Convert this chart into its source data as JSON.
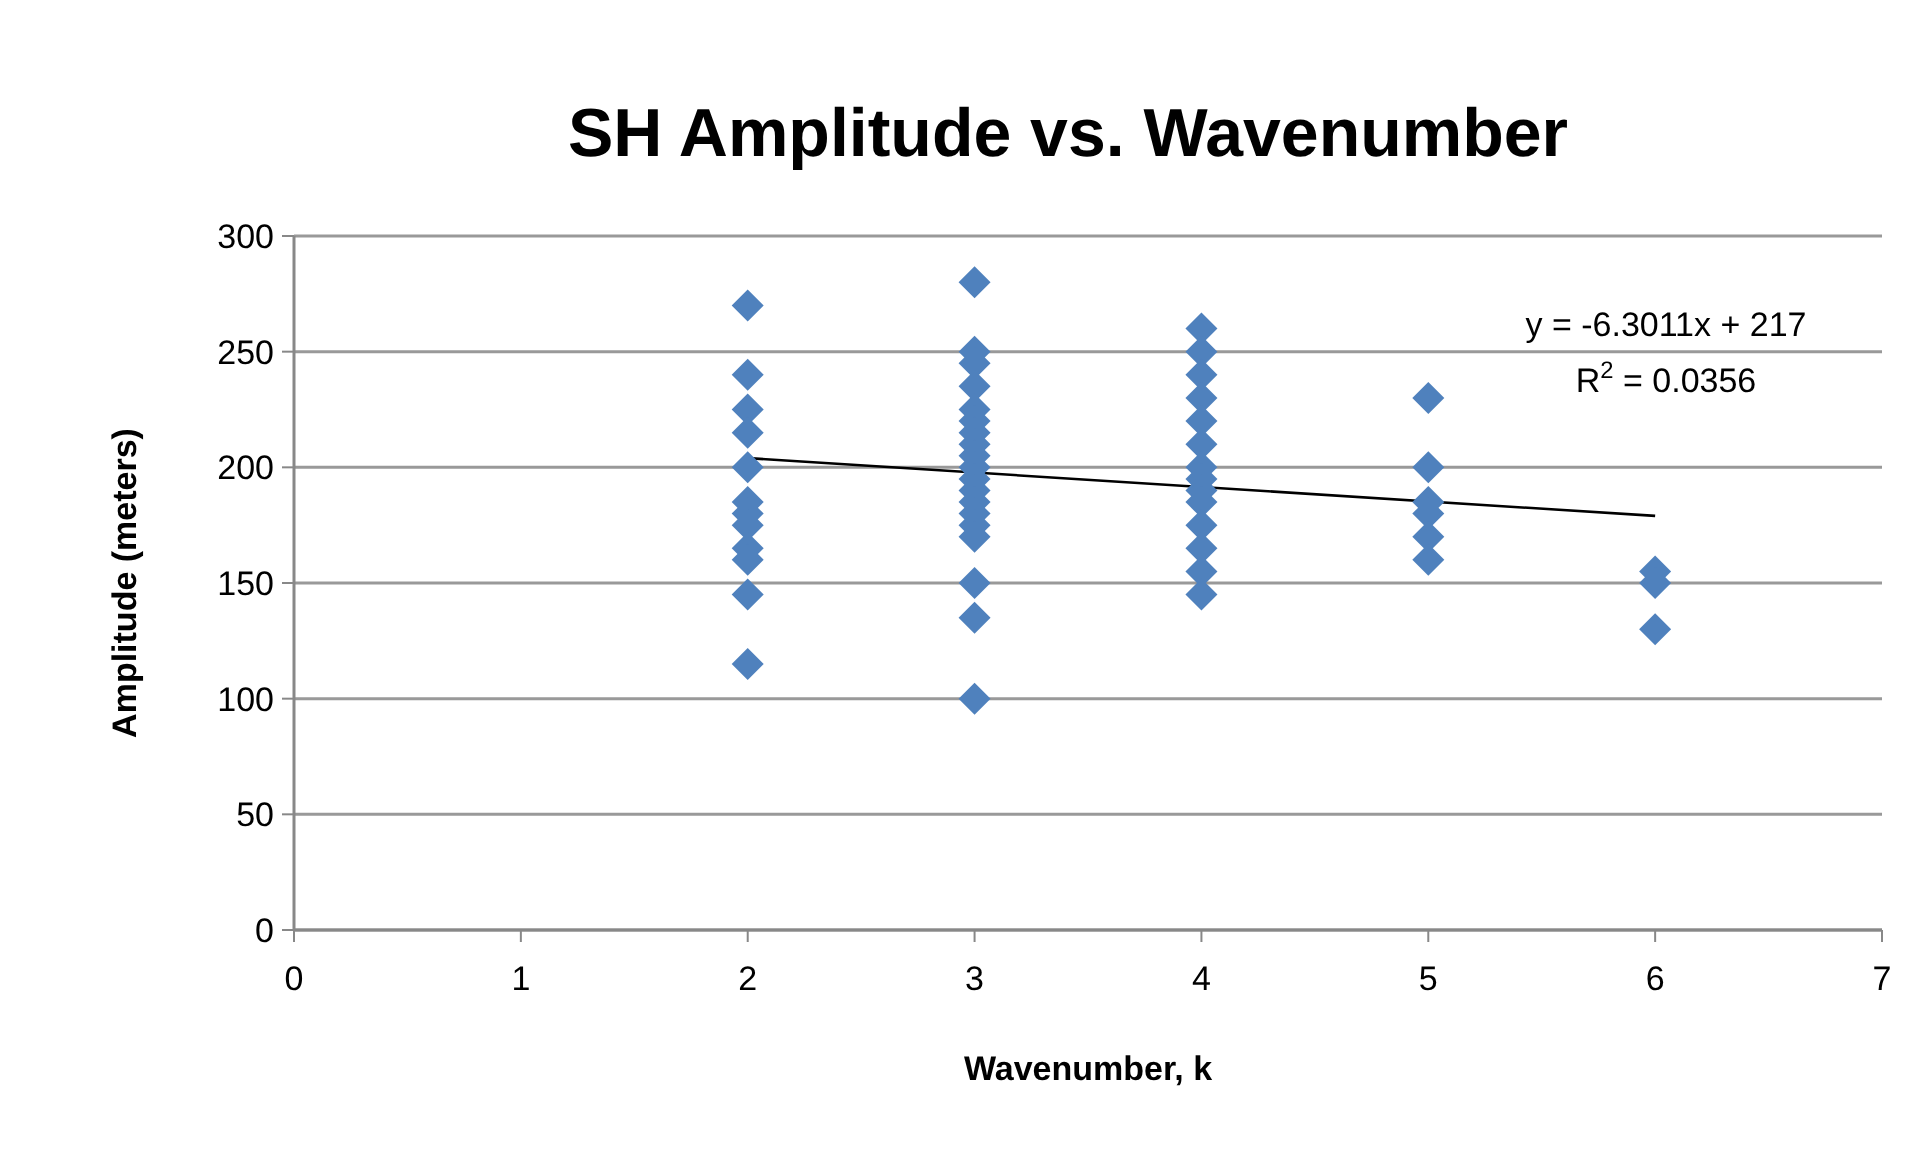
{
  "chart_data": {
    "type": "scatter",
    "title": "SH Amplitude vs. Wavenumber",
    "xlabel": "Wavenumber, k",
    "ylabel": "Amplitude (meters)",
    "xlim": [
      0,
      7
    ],
    "xticks": [
      0,
      1,
      2,
      3,
      4,
      5,
      6,
      7
    ],
    "ylim": [
      0,
      300
    ],
    "yticks": [
      0,
      50,
      100,
      150,
      200,
      250,
      300
    ],
    "grid": "y",
    "series": [
      {
        "marker": "diamond",
        "color": "#4f81bd",
        "x": [
          2,
          2,
          2,
          2,
          2,
          2,
          2,
          2,
          2,
          2,
          2,
          2,
          3,
          3,
          3,
          3,
          3,
          3,
          3,
          3,
          3,
          3,
          3,
          3,
          3,
          3,
          3,
          3,
          3,
          3,
          3,
          4,
          4,
          4,
          4,
          4,
          4,
          4,
          4,
          4,
          4,
          4,
          4,
          4,
          4,
          5,
          5,
          5,
          5,
          5,
          5,
          6,
          6,
          6
        ],
        "values": [
          270,
          240,
          225,
          215,
          200,
          185,
          180,
          175,
          165,
          160,
          145,
          115,
          280,
          250,
          245,
          235,
          225,
          220,
          215,
          210,
          205,
          200,
          195,
          190,
          185,
          180,
          175,
          170,
          150,
          135,
          100,
          260,
          250,
          240,
          230,
          220,
          210,
          200,
          195,
          190,
          185,
          175,
          165,
          155,
          145,
          230,
          200,
          185,
          180,
          170,
          160,
          155,
          150,
          130
        ]
      },
      {
        "type": "line",
        "color": "#000000",
        "x": [
          2,
          6
        ],
        "values": [
          204,
          179
        ]
      }
    ],
    "annotations": [
      "y = -6.3011x + 217",
      "R$^{2}$ = 0.0356"
    ]
  }
}
